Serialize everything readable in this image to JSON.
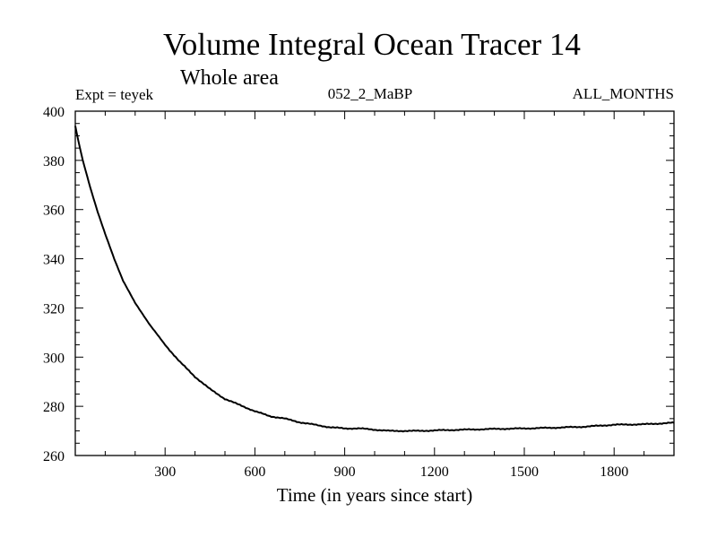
{
  "chart_data": {
    "type": "line",
    "title": "Volume Integral Ocean Tracer 14",
    "subtitle": "Whole area",
    "annotations": {
      "left": "Expt = teyek",
      "center": "052_2_MaBP",
      "right": "ALL_MONTHS"
    },
    "xlabel": "Time (in years since start)",
    "ylabel": "",
    "xlim": [
      0,
      2000
    ],
    "ylim": [
      260,
      400
    ],
    "xticks": [
      300,
      600,
      900,
      1200,
      1500,
      1800
    ],
    "yticks": [
      260,
      280,
      300,
      320,
      340,
      360,
      380,
      400
    ],
    "grid": false,
    "legend": "none",
    "series": [
      {
        "name": "Ocean Tracer 14",
        "color": "#000000",
        "x": [
          0,
          10,
          25,
          50,
          75,
          100,
          130,
          160,
          200,
          250,
          300,
          350,
          400,
          450,
          500,
          550,
          600,
          650,
          700,
          750,
          800,
          850,
          900,
          950,
          1000,
          1050,
          1100,
          1150,
          1200,
          1300,
          1400,
          1500,
          1600,
          1700,
          1800,
          1900,
          2000
        ],
        "y": [
          394,
          388,
          380,
          369,
          359,
          350,
          340,
          331,
          322,
          313,
          305,
          298,
          292,
          287,
          283,
          280.5,
          278,
          276,
          275,
          273.5,
          272.5,
          271.5,
          271,
          271,
          270.5,
          270,
          270,
          270,
          270.2,
          270.5,
          270.8,
          271,
          271.3,
          271.7,
          272.5,
          272.7,
          273.3
        ]
      }
    ]
  }
}
